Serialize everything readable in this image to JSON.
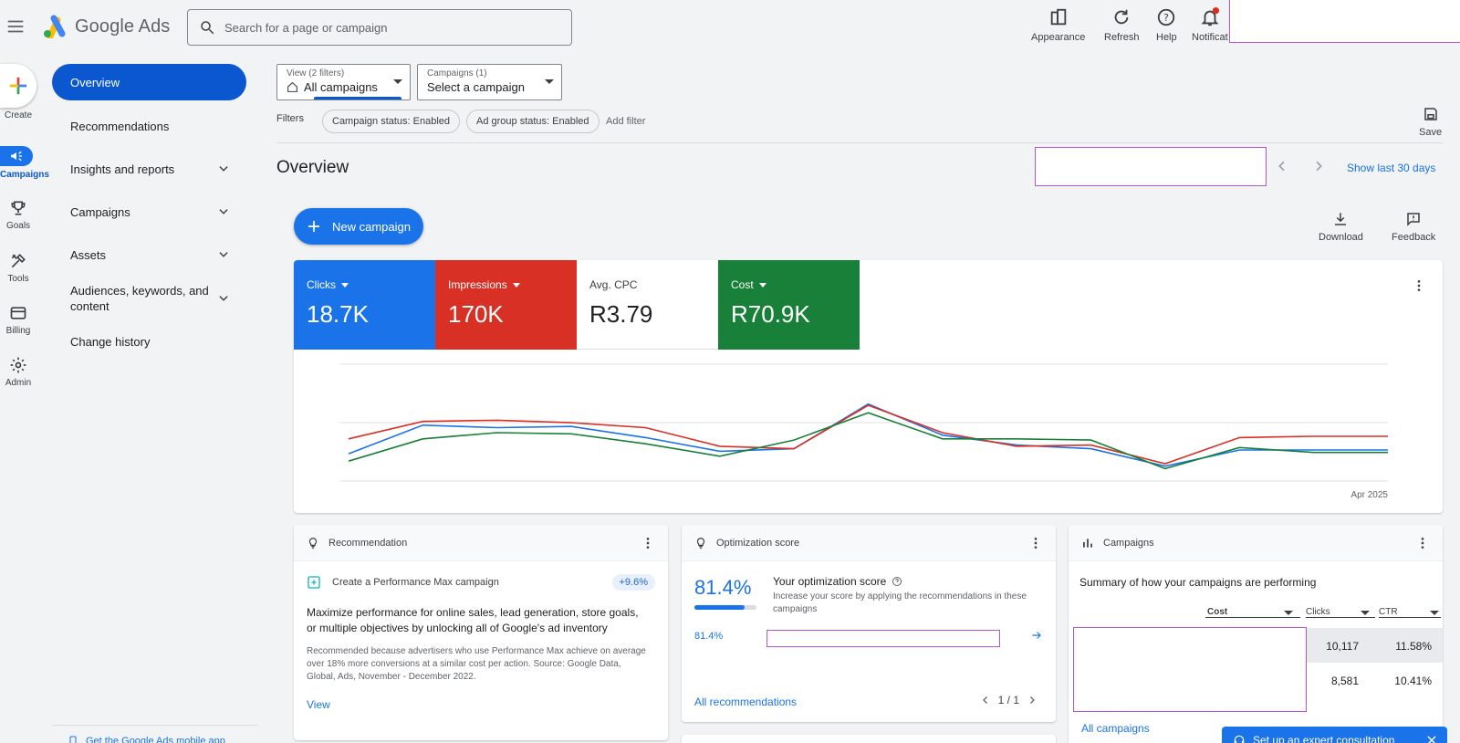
{
  "app": {
    "title": "Google Ads"
  },
  "search": {
    "placeholder": "Search for a page or campaign"
  },
  "top_actions": [
    {
      "label": "Appearance",
      "icon": "appearance-icon"
    },
    {
      "label": "Refresh",
      "icon": "refresh-icon"
    },
    {
      "label": "Help",
      "icon": "help-icon"
    },
    {
      "label": "Notificat",
      "icon": "bell-icon"
    }
  ],
  "rail": {
    "create": "Create",
    "items": [
      {
        "label": "Campaigns",
        "icon": "campaigns-icon"
      },
      {
        "label": "Goals",
        "icon": "trophy-icon"
      },
      {
        "label": "Tools",
        "icon": "tools-icon"
      },
      {
        "label": "Billing",
        "icon": "billing-icon"
      },
      {
        "label": "Admin",
        "icon": "gear-icon"
      }
    ]
  },
  "nav": {
    "items": [
      {
        "label": "Overview"
      },
      {
        "label": "Recommendations"
      },
      {
        "label": "Insights and reports"
      },
      {
        "label": "Campaigns"
      },
      {
        "label": "Assets"
      },
      {
        "label": "Audiences, keywords, and content"
      },
      {
        "label": "Change history"
      }
    ]
  },
  "filters": {
    "view_small": "View (2 filters)",
    "view_main": "All campaigns",
    "campaigns_small": "Campaigns (1)",
    "campaigns_main": "Select a campaign",
    "label": "Filters",
    "chips": [
      "Campaign status: Enabled",
      "Ad group status: Enabled"
    ],
    "add_filter": "Add filter",
    "save": "Save"
  },
  "overview": {
    "title": "Overview",
    "date_range": "Show last 30 days",
    "new_campaign": "New campaign",
    "download": "Download",
    "feedback": "Feedback"
  },
  "metrics": [
    {
      "label": "Clicks",
      "value": "18.7K",
      "color": "#1a73e8"
    },
    {
      "label": "Impressions",
      "value": "170K",
      "color": "#d93025"
    },
    {
      "label": "Avg. CPC",
      "value": "R3.79",
      "color": "#ffffff"
    },
    {
      "label": "Cost",
      "value": "R70.9K",
      "color": "#188038"
    }
  ],
  "chart_data": {
    "type": "line",
    "x_label_end": "Apr 2025",
    "x": [
      0,
      1,
      2,
      3,
      4,
      5,
      6,
      7,
      8,
      9,
      10,
      11,
      12,
      13,
      14
    ],
    "series": [
      {
        "color": "#1a73e8",
        "values": [
          0.22,
          0.45,
          0.43,
          0.44,
          0.35,
          0.24,
          0.26,
          0.62,
          0.37,
          0.29,
          0.26,
          0.12,
          0.25,
          0.25,
          0.25
        ]
      },
      {
        "color": "#d93025",
        "values": [
          0.34,
          0.48,
          0.49,
          0.47,
          0.43,
          0.28,
          0.26,
          0.61,
          0.39,
          0.28,
          0.29,
          0.14,
          0.35,
          0.36,
          0.36
        ]
      },
      {
        "color": "#188038",
        "values": [
          0.16,
          0.34,
          0.39,
          0.38,
          0.3,
          0.2,
          0.33,
          0.55,
          0.34,
          0.34,
          0.33,
          0.1,
          0.27,
          0.23,
          0.23
        ]
      }
    ],
    "ylim": [
      0,
      1
    ]
  },
  "recommendation": {
    "header": "Recommendation",
    "item": "Create a Performance Max campaign",
    "badge": "+9.6%",
    "headline": "Maximize performance for online sales, lead generation, store goals, or multiple objectives by unlocking all of Google's ad inventory",
    "body": "Recommended because advertisers who use Performance Max achieve on average over 18% more conversions at a similar cost per action. Source: Google Data, Global, Ads, November - December 2022.",
    "view": "View"
  },
  "optimization": {
    "header": "Optimization score",
    "score": "81.4%",
    "score_fraction": 0.814,
    "title": "Your optimization score",
    "desc": "Increase your score by applying the recommendations in these campaigns",
    "row_score": "81.4%",
    "all": "All recommendations",
    "pager": "1 / 1"
  },
  "campaigns": {
    "header": "Campaigns",
    "summary": "Summary of how your campaigns are performing",
    "columns": [
      "Cost",
      "Clicks",
      "CTR"
    ],
    "rows": [
      {
        "clicks": "10,117",
        "ctr": "11.58%"
      },
      {
        "clicks": "8,581",
        "ctr": "10.41%"
      }
    ],
    "all": "All campaigns"
  },
  "mobile_app": "Get the Google Ads mobile app",
  "consult": "Set up an expert consultation"
}
